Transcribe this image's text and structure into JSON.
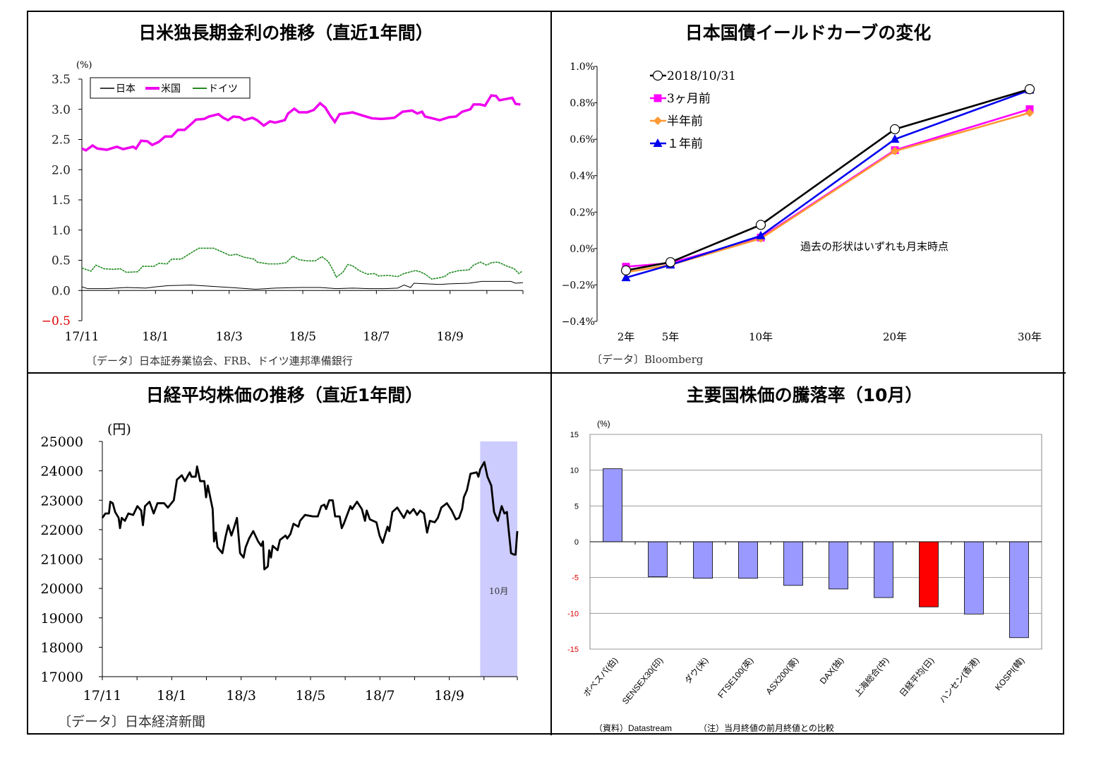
{
  "chart_data": [
    {
      "type": "line",
      "title": "日米独長期金利の推移（直近1年間）",
      "ylabel": "(%)",
      "ylim": [
        -0.5,
        3.5
      ],
      "yticks": [
        "3.5",
        "3.0",
        "2.5",
        "2.0",
        "1.5",
        "1.0",
        "0.5",
        "0.0",
        "−0.5"
      ],
      "ytick_values": [
        3.5,
        3.0,
        2.5,
        2.0,
        1.5,
        1.0,
        0.5,
        0.0,
        -0.5
      ],
      "xunit": "months since 17/11",
      "xlim": [
        0,
        11.98
      ],
      "xticks": [
        {
          "x": 0,
          "label": "17/11"
        },
        {
          "x": 2,
          "label": "18/1"
        },
        {
          "x": 4,
          "label": "18/3"
        },
        {
          "x": 6,
          "label": "18/5"
        },
        {
          "x": 8,
          "label": "18/7"
        },
        {
          "x": 10,
          "label": "18/9"
        }
      ],
      "legend_position": "top-left",
      "source": "〔データ〕日本証券業協会、FRB、ドイツ連邦準備銀行",
      "series": [
        {
          "name": "日本",
          "color": "#000000",
          "x": [
            0,
            0.16,
            0.68,
            1.21,
            1.74,
            2.0,
            2.35,
            2.96,
            3.49,
            4.02,
            4.72,
            5.25,
            5.95,
            6.47,
            6.91,
            7.35,
            7.79,
            8.23,
            8.58,
            8.75,
            8.93,
            9.02,
            9.37,
            9.72,
            9.98,
            10.51,
            10.86,
            11.21,
            11.65,
            11.78,
            11.98
          ],
          "y": [
            0.06,
            0.03,
            0.03,
            0.05,
            0.04,
            0.06,
            0.08,
            0.09,
            0.07,
            0.05,
            0.02,
            0.04,
            0.05,
            0.05,
            0.03,
            0.04,
            0.03,
            0.03,
            0.04,
            0.09,
            0.05,
            0.12,
            0.11,
            0.1,
            0.11,
            0.12,
            0.15,
            0.15,
            0.15,
            0.12,
            0.13
          ]
        },
        {
          "name": "米国",
          "color": "#ee00ee",
          "x": [
            0,
            0.11,
            0.29,
            0.42,
            0.68,
            0.95,
            1.12,
            1.39,
            1.47,
            1.61,
            1.78,
            1.91,
            2.09,
            2.26,
            2.44,
            2.61,
            2.79,
            2.96,
            3.1,
            3.32,
            3.45,
            3.71,
            3.84,
            3.97,
            4.11,
            4.28,
            4.41,
            4.63,
            4.76,
            4.94,
            5.11,
            5.25,
            5.51,
            5.6,
            5.77,
            5.9,
            6.12,
            6.3,
            6.47,
            6.61,
            6.74,
            6.87,
            7.0,
            7.26,
            7.35,
            7.61,
            7.88,
            8.14,
            8.32,
            8.49,
            8.71,
            8.97,
            9.11,
            9.24,
            9.32,
            9.59,
            9.72,
            9.98,
            10.16,
            10.33,
            10.55,
            10.64,
            10.82,
            10.95,
            11.12,
            11.25,
            11.34,
            11.52,
            11.69,
            11.78,
            11.91
          ],
          "y": [
            2.35,
            2.32,
            2.4,
            2.35,
            2.33,
            2.38,
            2.34,
            2.38,
            2.35,
            2.48,
            2.47,
            2.41,
            2.46,
            2.55,
            2.55,
            2.66,
            2.66,
            2.75,
            2.83,
            2.84,
            2.88,
            2.92,
            2.86,
            2.82,
            2.88,
            2.87,
            2.82,
            2.86,
            2.82,
            2.73,
            2.8,
            2.78,
            2.82,
            2.93,
            3.01,
            2.95,
            2.95,
            2.99,
            3.1,
            3.03,
            2.9,
            2.79,
            2.92,
            2.94,
            2.95,
            2.9,
            2.85,
            2.84,
            2.85,
            2.86,
            2.96,
            2.98,
            2.93,
            2.96,
            2.88,
            2.84,
            2.82,
            2.87,
            2.88,
            2.96,
            3.0,
            3.08,
            3.08,
            3.06,
            3.23,
            3.22,
            3.15,
            3.17,
            3.19,
            3.09,
            3.08
          ]
        },
        {
          "name": "ドイツ",
          "color": "#228b22",
          "x": [
            0,
            0.25,
            0.38,
            0.6,
            0.86,
            1.04,
            1.21,
            1.52,
            1.65,
            1.96,
            2.09,
            2.31,
            2.44,
            2.7,
            2.96,
            3.18,
            3.4,
            3.58,
            3.84,
            4.02,
            4.19,
            4.41,
            4.68,
            4.76,
            5.07,
            5.33,
            5.55,
            5.73,
            5.9,
            6.12,
            6.34,
            6.52,
            6.69,
            6.82,
            6.91,
            7.09,
            7.22,
            7.35,
            7.53,
            7.75,
            7.96,
            8.05,
            8.32,
            8.58,
            8.75,
            9.06,
            9.19,
            9.32,
            9.5,
            9.63,
            9.85,
            9.98,
            10.25,
            10.51,
            10.64,
            10.82,
            10.99,
            11.12,
            11.3,
            11.56,
            11.74,
            11.87,
            11.96
          ],
          "y": [
            0.37,
            0.32,
            0.42,
            0.36,
            0.35,
            0.36,
            0.3,
            0.31,
            0.4,
            0.4,
            0.45,
            0.44,
            0.52,
            0.52,
            0.62,
            0.7,
            0.7,
            0.7,
            0.63,
            0.58,
            0.6,
            0.55,
            0.52,
            0.47,
            0.44,
            0.44,
            0.46,
            0.57,
            0.51,
            0.49,
            0.49,
            0.56,
            0.48,
            0.34,
            0.22,
            0.3,
            0.43,
            0.41,
            0.33,
            0.27,
            0.28,
            0.24,
            0.25,
            0.23,
            0.28,
            0.33,
            0.31,
            0.27,
            0.19,
            0.2,
            0.23,
            0.29,
            0.33,
            0.34,
            0.42,
            0.47,
            0.42,
            0.46,
            0.47,
            0.4,
            0.36,
            0.28,
            0.32
          ]
        }
      ]
    },
    {
      "type": "line",
      "title": "日本国債イールドカーブの変化",
      "ylim": [
        -0.4,
        1.0
      ],
      "yticks": [
        "1.0%",
        "0.8%",
        "0.6%",
        "0.4%",
        "0.2%",
        "0.0%",
        "−0.2%",
        "−0.4%"
      ],
      "ytick_values": [
        1.0,
        0.8,
        0.6,
        0.4,
        0.2,
        0.0,
        -0.2,
        -0.4
      ],
      "categories": [
        "2年",
        "5年",
        "10年",
        "20年",
        "30年"
      ],
      "annotation": "過去の形状はいずれも月末時点",
      "legend_position": "top-left",
      "source": "〔データ〕Bloomberg",
      "series": [
        {
          "name": "2018/10/31",
          "color": "#000000",
          "marker": "circle",
          "values": [
            -0.12,
            -0.075,
            0.13,
            0.655,
            0.875
          ]
        },
        {
          "name": "3ヶ月前",
          "color": "#ff00ff",
          "marker": "square",
          "values": [
            -0.1,
            -0.08,
            0.06,
            0.54,
            0.765
          ]
        },
        {
          "name": "半年前",
          "color": "#ff9933",
          "marker": "diamond",
          "values": [
            -0.13,
            -0.09,
            0.055,
            0.535,
            0.745
          ]
        },
        {
          "name": "１年前",
          "color": "#0000ee",
          "marker": "triangle",
          "values": [
            -0.16,
            -0.09,
            0.07,
            0.6,
            0.87
          ]
        }
      ]
    },
    {
      "type": "line",
      "title": "日経平均株価の推移（直近1年間）",
      "ylabel": "(円)",
      "ylim": [
        17000,
        25000
      ],
      "yticks": [
        "25000",
        "24000",
        "23000",
        "22000",
        "21000",
        "20000",
        "19000",
        "18000",
        "17000"
      ],
      "ytick_values": [
        25000,
        24000,
        23000,
        22000,
        21000,
        20000,
        19000,
        18000,
        17000
      ],
      "xunit": "months since 17/11",
      "xlim": [
        0,
        11.96
      ],
      "xticks": [
        {
          "x": 0,
          "label": "17/11"
        },
        {
          "x": 2,
          "label": "18/1"
        },
        {
          "x": 4,
          "label": "18/3"
        },
        {
          "x": 6,
          "label": "18/5"
        },
        {
          "x": 8,
          "label": "18/7"
        },
        {
          "x": 10,
          "label": "18/9"
        }
      ],
      "highlight": {
        "from": 10.89,
        "to": 11.96,
        "label": "10月",
        "color": "#ccccff"
      },
      "source": "〔データ〕日本経済新聞",
      "series": [
        {
          "name": "日経平均",
          "color": "#000000",
          "x": [
            0,
            0.09,
            0.19,
            0.23,
            0.3,
            0.37,
            0.47,
            0.51,
            0.56,
            0.65,
            0.75,
            0.89,
            1.01,
            1.12,
            1.17,
            1.23,
            1.36,
            1.48,
            1.59,
            1.78,
            1.89,
            2.06,
            2.15,
            2.29,
            2.38,
            2.52,
            2.57,
            2.69,
            2.73,
            2.82,
            2.94,
            2.99,
            3.04,
            3.18,
            3.22,
            3.27,
            3.32,
            3.46,
            3.55,
            3.63,
            3.72,
            3.79,
            3.88,
            3.97,
            4.07,
            4.13,
            4.23,
            4.35,
            4.49,
            4.58,
            4.63,
            4.67,
            4.77,
            4.81,
            4.86,
            4.91,
            5.05,
            5.12,
            5.28,
            5.33,
            5.42,
            5.51,
            5.65,
            5.7,
            5.84,
            6.07,
            6.21,
            6.31,
            6.4,
            6.45,
            6.54,
            6.64,
            6.71,
            6.84,
            6.9,
            6.96,
            7.15,
            7.2,
            7.34,
            7.48,
            7.57,
            7.62,
            7.71,
            7.9,
            7.99,
            8.08,
            8.22,
            8.27,
            8.36,
            8.5,
            8.69,
            8.79,
            8.86,
            8.97,
            9.07,
            9.16,
            9.27,
            9.36,
            9.44,
            9.58,
            9.67,
            9.77,
            9.93,
            10.07,
            10.19,
            10.28,
            10.37,
            10.42,
            10.51,
            10.61,
            10.79,
            10.84,
            10.89,
            11.01,
            11.1,
            11.21,
            11.29,
            11.4,
            11.51,
            11.59,
            11.66,
            11.71,
            11.78,
            11.87,
            11.91,
            11.96
          ],
          "y": [
            22400,
            22550,
            22550,
            22950,
            22900,
            22600,
            22400,
            22050,
            22400,
            22300,
            22550,
            22500,
            22800,
            22650,
            22150,
            22800,
            22950,
            22550,
            22900,
            22900,
            22750,
            23000,
            23700,
            23850,
            23650,
            23950,
            23800,
            23800,
            24150,
            23650,
            23650,
            23100,
            23500,
            22700,
            21600,
            21900,
            21400,
            21200,
            21750,
            22150,
            21800,
            22050,
            22400,
            21200,
            21050,
            21400,
            21700,
            21950,
            21600,
            21450,
            21600,
            20650,
            20750,
            21300,
            21050,
            21450,
            21300,
            21650,
            21800,
            21700,
            21850,
            22200,
            22100,
            22300,
            22500,
            22450,
            22450,
            22800,
            22850,
            22700,
            23000,
            23000,
            22450,
            22450,
            22050,
            22200,
            22800,
            22700,
            22950,
            22700,
            22300,
            22650,
            22350,
            22250,
            21800,
            21550,
            22100,
            21950,
            22600,
            22750,
            22400,
            22650,
            22550,
            22700,
            22500,
            22650,
            22550,
            21900,
            22300,
            22250,
            22400,
            22750,
            22900,
            22650,
            22350,
            22400,
            22700,
            23100,
            23350,
            23900,
            23950,
            23800,
            24050,
            24300,
            23800,
            23500,
            22600,
            22300,
            22800,
            22550,
            22600,
            22000,
            21200,
            21150,
            21150,
            21950
          ]
        }
      ]
    },
    {
      "type": "bar",
      "title": "主要国株価の騰落率（10月）",
      "ylabel": "(%)",
      "ylim": [
        -15,
        15
      ],
      "yticks": [
        "15",
        "10",
        "5",
        "0",
        "-5",
        "-10",
        "-15"
      ],
      "ytick_values": [
        15,
        10,
        5,
        0,
        -5,
        -10,
        -15
      ],
      "grid": true,
      "categories": [
        "ボベスパ(伯)",
        "SENSEX30(印)",
        "ダウ(米)",
        "FTSE100(英)",
        "ASX200(豪)",
        "DAX(独)",
        "上海総合(中)",
        "日経平均(日)",
        "ハンセン(香港)",
        "KOSPI(韓)"
      ],
      "values": [
        10.2,
        -4.9,
        -5.1,
        -5.1,
        -6.1,
        -6.6,
        -7.8,
        -9.1,
        -10.1,
        -13.4
      ],
      "colors": [
        "#9999ff",
        "#9999ff",
        "#9999ff",
        "#9999ff",
        "#9999ff",
        "#9999ff",
        "#9999ff",
        "#ff0000",
        "#9999ff",
        "#9999ff"
      ],
      "source": "（資料）Datastream",
      "note": "（注）当月終値の前月終値との比較"
    }
  ]
}
